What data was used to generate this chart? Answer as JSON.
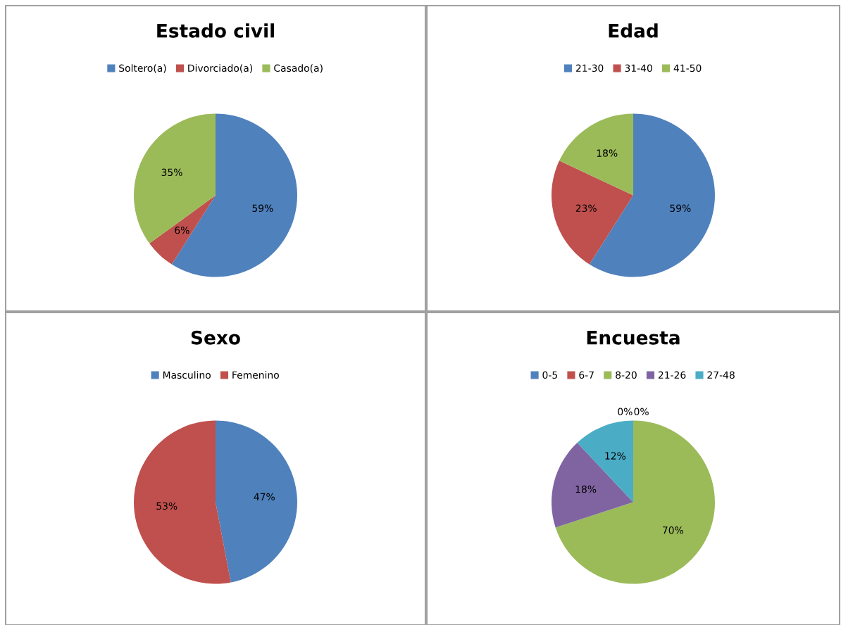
{
  "chart_data": [
    {
      "type": "pie",
      "title": "Estado civil",
      "categories": [
        "Soltero(a)",
        "Divorciado(a)",
        "Casado(a)"
      ],
      "values": [
        59,
        6,
        35
      ],
      "colors": [
        "#4f81bd",
        "#c0504d",
        "#9bbb59"
      ],
      "value_labels": [
        "59%",
        "6%",
        "35%"
      ],
      "legend": "top"
    },
    {
      "type": "pie",
      "title": "Edad",
      "categories": [
        "21-30",
        "31-40",
        "41-50"
      ],
      "values": [
        59,
        23,
        18
      ],
      "colors": [
        "#4f81bd",
        "#c0504d",
        "#9bbb59"
      ],
      "value_labels": [
        "59%",
        "23%",
        "18%"
      ],
      "legend": "top"
    },
    {
      "type": "pie",
      "title": "Sexo",
      "categories": [
        "Masculino",
        "Femenino"
      ],
      "values": [
        47,
        53
      ],
      "colors": [
        "#4f81bd",
        "#c0504d"
      ],
      "value_labels": [
        "47%",
        "53%"
      ],
      "legend": "top"
    },
    {
      "type": "pie",
      "title": "Encuesta",
      "categories": [
        "0-5",
        "6-7",
        "8-20",
        "21-26",
        "27-48"
      ],
      "values": [
        0,
        0,
        70,
        18,
        12
      ],
      "colors": [
        "#4f81bd",
        "#c0504d",
        "#9bbb59",
        "#8064a2",
        "#4bacc6"
      ],
      "value_labels": [
        "0%",
        "0%",
        "70%",
        "18%",
        "12%"
      ],
      "legend": "top"
    }
  ]
}
